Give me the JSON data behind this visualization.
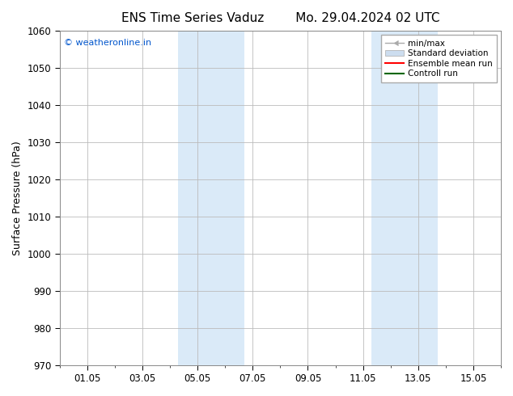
{
  "title_left": "ENS Time Series Vaduz",
  "title_right": "Mo. 29.04.2024 02 UTC",
  "ylabel": "Surface Pressure (hPa)",
  "ylim": [
    970,
    1060
  ],
  "yticks": [
    970,
    980,
    990,
    1000,
    1010,
    1020,
    1030,
    1040,
    1050,
    1060
  ],
  "xlim_start": -1.0,
  "xlim_end": 15.0,
  "xtick_positions": [
    0,
    2,
    4,
    6,
    8,
    10,
    12,
    14
  ],
  "xtick_labels": [
    "01.05",
    "03.05",
    "05.05",
    "07.05",
    "09.05",
    "11.05",
    "13.05",
    "15.05"
  ],
  "watermark": "© weatheronline.in",
  "watermark_color": "#0055cc",
  "bg_color": "#ffffff",
  "plot_bg_color": "#ffffff",
  "shaded_bands": [
    {
      "x_start": 3.3,
      "x_end": 5.7,
      "color": "#daeaf8"
    },
    {
      "x_start": 10.3,
      "x_end": 12.7,
      "color": "#daeaf8"
    }
  ],
  "legend_items": [
    {
      "label": "min/max",
      "type": "minmax",
      "color": "#aaaaaa",
      "lw": 1.0
    },
    {
      "label": "Standard deviation",
      "type": "patch",
      "color": "#ccddef",
      "lw": 6
    },
    {
      "label": "Ensemble mean run",
      "type": "line",
      "color": "#ff0000",
      "lw": 1.5
    },
    {
      "label": "Controll run",
      "type": "line",
      "color": "#006600",
      "lw": 1.5
    }
  ],
  "grid_color": "#bbbbbb",
  "minor_xtick_interval": 0.5,
  "tick_label_fontsize": 8.5,
  "axis_label_fontsize": 9,
  "title_fontsize": 11,
  "font_family": "sans-serif"
}
